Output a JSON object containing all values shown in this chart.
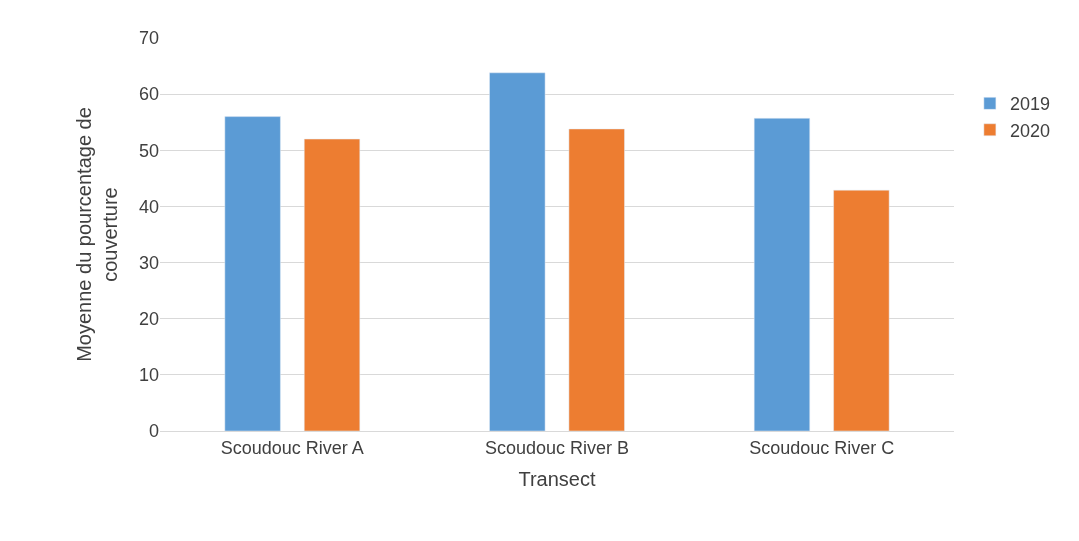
{
  "chart_data": {
    "type": "bar",
    "xlabel": "Transect",
    "ylabel": "Moyenne du pourcentage de couverture",
    "categories": [
      "Scoudouc River A",
      "Scoudouc River B",
      "Scoudouc River C"
    ],
    "series": [
      {
        "name": "2019",
        "color": "#5b9bd5",
        "values": [
          56,
          63.8,
          55.7
        ]
      },
      {
        "name": "2020",
        "color": "#ed7d31",
        "values": [
          52,
          53.8,
          42.9
        ]
      }
    ],
    "ylim": [
      0,
      70
    ],
    "yticks": [
      0,
      10,
      20,
      30,
      40,
      50,
      60,
      70
    ],
    "grid": "y",
    "legend": "right"
  }
}
